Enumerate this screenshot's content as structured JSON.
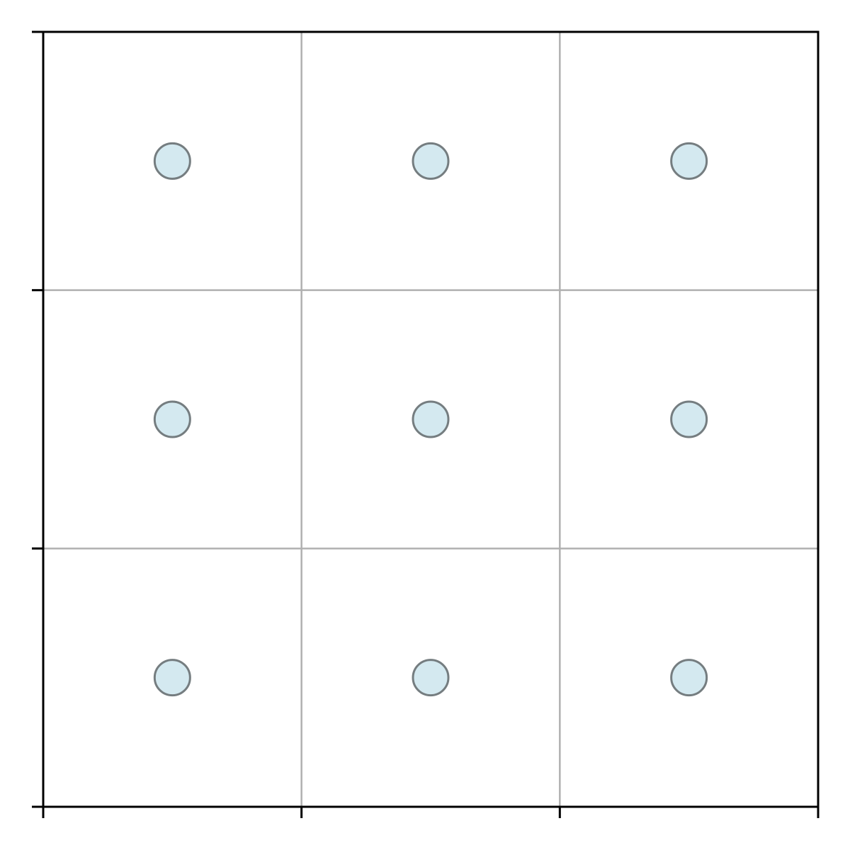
{
  "chart_data": {
    "type": "scatter",
    "title": "",
    "xlabel": "",
    "ylabel": "",
    "xlim": [
      0,
      3
    ],
    "ylim": [
      0,
      3
    ],
    "x_ticks": [
      0,
      1,
      2,
      3
    ],
    "y_ticks": [
      0,
      1,
      2,
      3
    ],
    "x_tick_labels": [
      "",
      "",
      "",
      ""
    ],
    "y_tick_labels": [
      "",
      "",
      "",
      ""
    ],
    "grid": true,
    "legend": "none",
    "series": [
      {
        "x": [
          0.5,
          1.5,
          2.5,
          0.5,
          1.5,
          2.5,
          0.5,
          1.5,
          2.5
        ],
        "y": [
          2.5,
          2.5,
          2.5,
          1.5,
          1.5,
          1.5,
          0.5,
          0.5,
          0.5
        ]
      }
    ]
  },
  "colors": {
    "marker_fill": "#d4e9f0",
    "marker_edge": "#757d80",
    "grid": "#b0b0b0",
    "axis": "#000000",
    "background": "#ffffff"
  }
}
